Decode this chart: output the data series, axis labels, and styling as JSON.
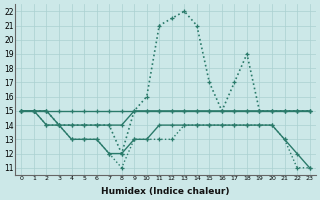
{
  "xlabel": "Humidex (Indice chaleur)",
  "ylabel": "",
  "xlim": [
    -0.5,
    23.5
  ],
  "ylim": [
    10.5,
    22.5
  ],
  "xticks": [
    0,
    1,
    2,
    3,
    4,
    5,
    6,
    7,
    8,
    9,
    10,
    11,
    12,
    13,
    14,
    15,
    16,
    17,
    18,
    19,
    20,
    21,
    22,
    23
  ],
  "yticks": [
    11,
    12,
    13,
    14,
    15,
    16,
    17,
    18,
    19,
    20,
    21,
    22
  ],
  "bg_color": "#cce8e8",
  "line_color": "#2a7a6a",
  "lines": [
    {
      "y": [
        15,
        15,
        15,
        15,
        15,
        15,
        15,
        15,
        15,
        15,
        15,
        15,
        15,
        15,
        15,
        15,
        15,
        15,
        15,
        15,
        15,
        15,
        15,
        15
      ],
      "style": "-",
      "lw": 1.0
    },
    {
      "y": [
        15,
        15,
        15,
        14,
        14,
        14,
        14,
        14,
        14,
        15,
        15,
        15,
        15,
        15,
        15,
        15,
        15,
        15,
        15,
        15,
        15,
        15,
        15,
        15
      ],
      "style": "-",
      "lw": 1.0
    },
    {
      "y": [
        15,
        15,
        14,
        14,
        13,
        13,
        13,
        12,
        12,
        13,
        13,
        14,
        14,
        14,
        14,
        14,
        14,
        14,
        14,
        14,
        14,
        13,
        12,
        11
      ],
      "style": "-",
      "lw": 1.0
    },
    {
      "y": [
        15,
        15,
        14,
        14,
        13,
        13,
        13,
        12,
        11,
        13,
        13,
        13,
        13,
        14,
        14,
        14,
        14,
        14,
        14,
        14,
        14,
        13,
        11,
        11
      ],
      "style": ":",
      "lw": 1.0
    },
    {
      "y": [
        15,
        15,
        15,
        14,
        14,
        14,
        14,
        14,
        12,
        15,
        16,
        21,
        21.5,
        22,
        21,
        17,
        15,
        17,
        19,
        15,
        15,
        15,
        15,
        15
      ],
      "style": ":",
      "lw": 1.2
    }
  ]
}
